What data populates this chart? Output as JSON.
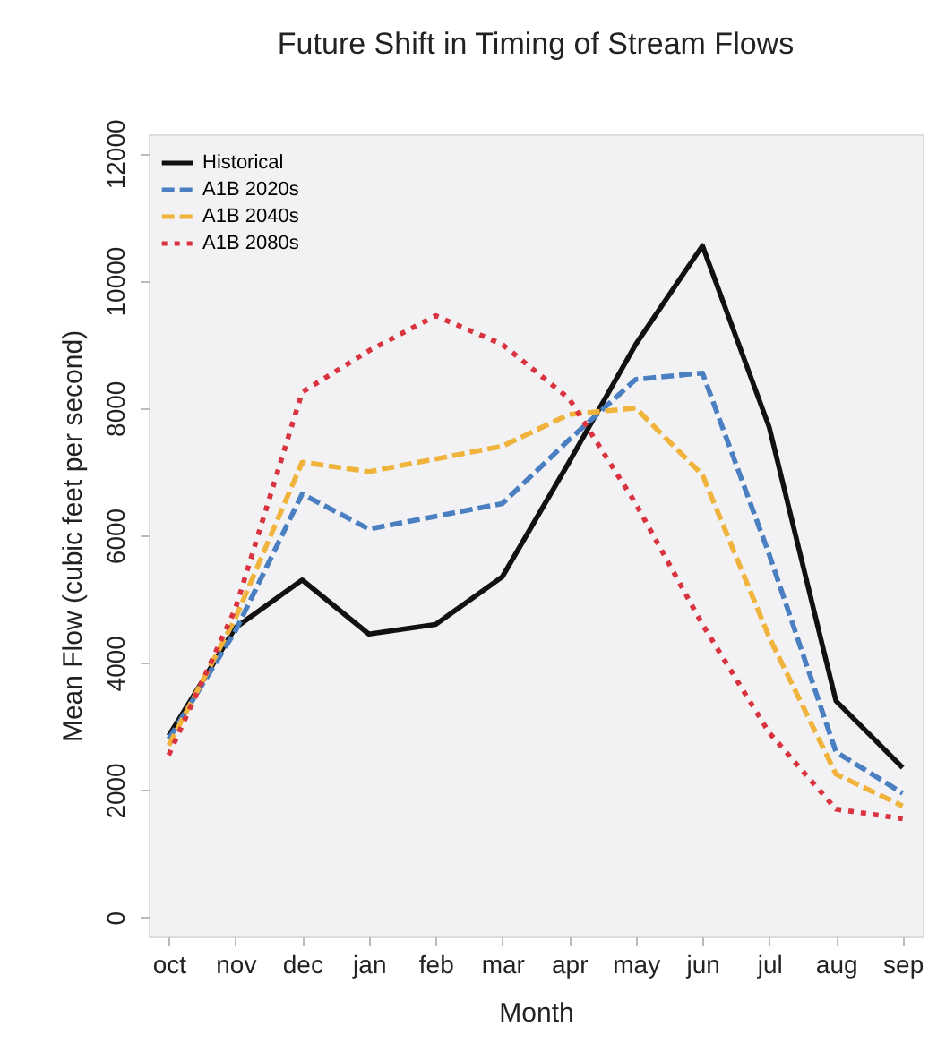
{
  "chart_data": {
    "type": "line",
    "title": "Future Shift in Timing of Stream Flows",
    "xlabel": "Month",
    "ylabel": "Mean Flow (cubic feet per second)",
    "categories": [
      "oct",
      "nov",
      "dec",
      "jan",
      "feb",
      "mar",
      "apr",
      "may",
      "jun",
      "jul",
      "aug",
      "sep"
    ],
    "series": [
      {
        "name": "Historical",
        "color": "#111111",
        "line_style": "solid",
        "values": [
          2850,
          4550,
          5300,
          4450,
          4600,
          5350,
          7150,
          9000,
          10550,
          7700,
          3400,
          2350
        ]
      },
      {
        "name": "A1B 2020s",
        "color": "#4a7fc1",
        "line_style": "dashed",
        "values": [
          2800,
          4500,
          6650,
          6100,
          6300,
          6500,
          7500,
          8450,
          8550,
          5700,
          2600,
          1950
        ]
      },
      {
        "name": "A1B 2040s",
        "color": "#f0b43c",
        "line_style": "dashed",
        "values": [
          2700,
          4700,
          7150,
          7000,
          7200,
          7400,
          7900,
          8000,
          6950,
          4400,
          2250,
          1750
        ]
      },
      {
        "name": "A1B 2080s",
        "color": "#d9333f",
        "line_style": "dotted",
        "values": [
          2550,
          4850,
          8250,
          8900,
          9450,
          9000,
          8150,
          6500,
          4600,
          2900,
          1700,
          1550
        ]
      }
    ],
    "ylim": [
      -300,
      12300
    ],
    "yticks": [
      0,
      2000,
      4000,
      6000,
      8000,
      10000,
      12000
    ],
    "grid": false,
    "legend": "top left"
  }
}
